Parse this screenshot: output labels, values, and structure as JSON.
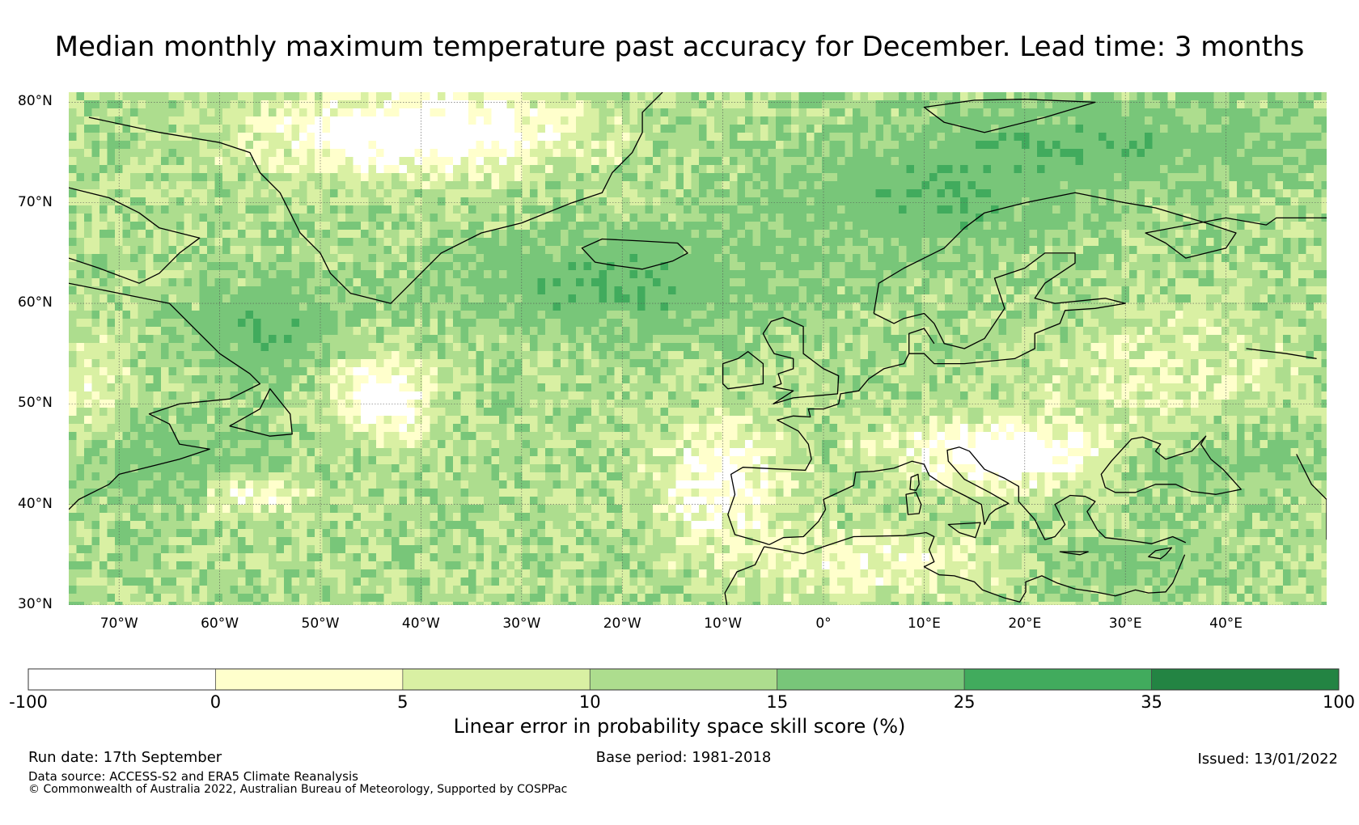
{
  "title": "Median monthly maximum temperature past accuracy for December. Lead time: 3 months",
  "map": {
    "lon_min": -75,
    "lon_max": 50,
    "lat_min": 30,
    "lat_max": 81,
    "lat_ticks": [
      {
        "value": 80,
        "label": "80°N"
      },
      {
        "value": 70,
        "label": "70°N"
      },
      {
        "value": 60,
        "label": "60°N"
      },
      {
        "value": 50,
        "label": "50°N"
      },
      {
        "value": 40,
        "label": "40°N"
      },
      {
        "value": 30,
        "label": "30°N"
      }
    ],
    "lon_ticks": [
      {
        "value": -70,
        "label": "70°W"
      },
      {
        "value": -60,
        "label": "60°W"
      },
      {
        "value": -50,
        "label": "50°W"
      },
      {
        "value": -40,
        "label": "40°W"
      },
      {
        "value": -30,
        "label": "30°W"
      },
      {
        "value": -20,
        "label": "20°W"
      },
      {
        "value": -10,
        "label": "10°W"
      },
      {
        "value": 0,
        "label": "0°"
      },
      {
        "value": 10,
        "label": "10°E"
      },
      {
        "value": 20,
        "label": "20°E"
      },
      {
        "value": 30,
        "label": "30°E"
      },
      {
        "value": 40,
        "label": "40°E"
      }
    ]
  },
  "colorbar": {
    "ticks": [
      "-100",
      "0",
      "5",
      "10",
      "15",
      "25",
      "35",
      "100"
    ],
    "colors": [
      "#ffffff",
      "#ffffcc",
      "#d9f0a3",
      "#addd8e",
      "#78c679",
      "#41ab5d",
      "#238443"
    ],
    "label": "Linear error in probability space skill score (%)"
  },
  "footer": {
    "run_date": "Run date: 17th September",
    "base_period": "Base period: 1981-2018",
    "issued": "Issued: 13/01/2022",
    "data_source": "Data source: ACCESS-S2 and ERA5 Climate Reanalysis",
    "copyright": "© Commonwealth of Australia 2022, Australian Bureau of Meteorology, Supported by COSPPac"
  }
}
